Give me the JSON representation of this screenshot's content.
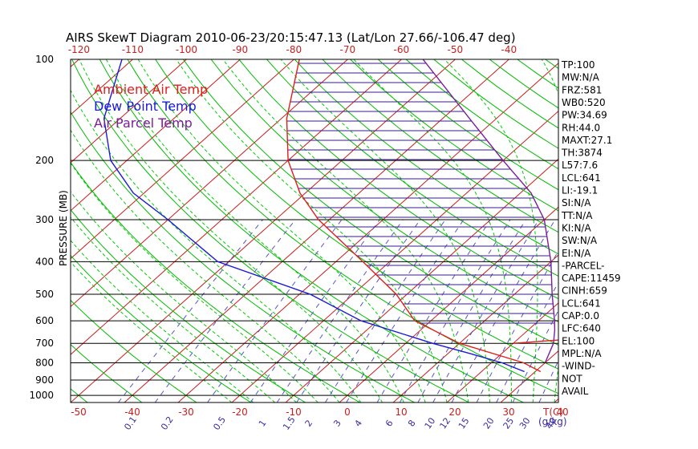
{
  "chart_data": {
    "type": "skewt",
    "title": "AIRS SkewT Diagram 2010-06-23/20:15:47.13 (Lat/Lon 27.66/-106.47 deg)",
    "ylabel": "PRESSURE (MB)",
    "x_bottom_unit": "T(C)",
    "x_mixing_unit": "(g/kg)",
    "pressure_ticks": [
      100,
      200,
      300,
      400,
      500,
      600,
      700,
      800,
      900,
      1000
    ],
    "temp_ticks_bottom": [
      -50,
      -40,
      -30,
      -20,
      -10,
      0,
      10,
      20,
      30,
      40
    ],
    "temp_ticks_top": [
      -120,
      -110,
      -100,
      -90,
      -80,
      -70,
      -60,
      -50,
      -40
    ],
    "mixing_ratio_ticks": [
      "0.1",
      "0.2",
      "0.5",
      "1",
      "1.5",
      "2",
      "3",
      "4",
      "6",
      "8",
      "10",
      "12",
      "15",
      "20",
      "25",
      "30",
      "40"
    ],
    "mixing_ratio_values": [
      0.1,
      0.2,
      0.5,
      1,
      1.5,
      2,
      3,
      4,
      6,
      8,
      10,
      12,
      15,
      20,
      25,
      30,
      40
    ],
    "legend": [
      {
        "label": "Ambient Air Temp",
        "color": "#e01e1e"
      },
      {
        "label": "Dew Point Temp",
        "color": "#1a1ad8"
      },
      {
        "label": "Air Parcel Temp",
        "color": "#7a1e9a"
      }
    ],
    "series": [
      {
        "name": "Ambient Air Temp",
        "color": "#e01e1e",
        "points": [
          [
            100,
            -79
          ],
          [
            150,
            -69
          ],
          [
            200,
            -60
          ],
          [
            250,
            -51
          ],
          [
            300,
            -42
          ],
          [
            400,
            -25
          ],
          [
            500,
            -12
          ],
          [
            600,
            -3
          ],
          [
            700,
            10
          ],
          [
            800,
            26
          ],
          [
            850,
            31
          ]
        ]
      },
      {
        "name": "Dew Point Temp",
        "color": "#1a1ad8",
        "points": [
          [
            100,
            -112
          ],
          [
            150,
            -103
          ],
          [
            200,
            -93
          ],
          [
            250,
            -82
          ],
          [
            300,
            -70
          ],
          [
            400,
            -52
          ],
          [
            500,
            -28
          ],
          [
            600,
            -13
          ],
          [
            700,
            5
          ],
          [
            750,
            14
          ],
          [
            800,
            22
          ],
          [
            850,
            28
          ]
        ]
      },
      {
        "name": "Air Parcel Temp",
        "color": "#7a1e9a",
        "points": [
          [
            100,
            -56
          ],
          [
            150,
            -35
          ],
          [
            200,
            -20
          ],
          [
            250,
            -8
          ],
          [
            300,
            0
          ],
          [
            400,
            10
          ],
          [
            500,
            17
          ],
          [
            600,
            23
          ],
          [
            640,
            25
          ],
          [
            700,
            27.5
          ],
          [
            800,
            30
          ]
        ]
      }
    ],
    "hatch": {
      "color": "#3a1e8a",
      "p_min": 100,
      "p_max": 640,
      "step": 12
    },
    "mpl_line": [
      [
        660,
        40
      ],
      [
        700,
        20
      ]
    ],
    "colors": {
      "isotherm": "#c81e1e",
      "dry_adiabat": "#00bb00",
      "moist_adiabat": "#00cc00",
      "mixing_ratio": "#5555c8",
      "isobar": "#000000"
    }
  },
  "indices": [
    "TP:100",
    "MW:N/A",
    "FRZ:581",
    "WB0:520",
    "PW:34.69",
    "RH:44.0",
    "MAXT:27.1",
    "TH:3874",
    "L57:7.6",
    "LCL:641",
    "LI:-19.1",
    "SI:N/A",
    "TT:N/A",
    "KI:N/A",
    "SW:N/A",
    "EI:N/A",
    "-PARCEL-",
    "CAPE:11459",
    "CINH:659",
    "LCL:641",
    "CAP:0.0",
    "LFC:640",
    "EL:100",
    "MPL:N/A",
    "-WIND-",
    "NOT",
    "AVAIL"
  ]
}
